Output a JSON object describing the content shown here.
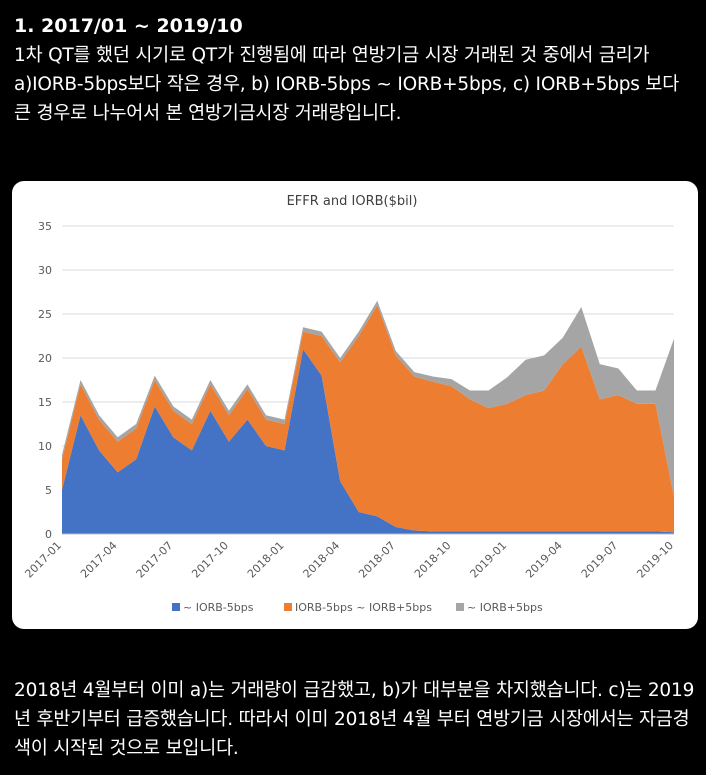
{
  "post": {
    "heading": "1. 2017/01 ~ 2019/10",
    "intro": "1차 QT를 했던 시기로 QT가 진행됨에 따라 연방기금 시장 거래된 것 중에서 금리가 a)IORB-5bps보다 작은 경우, b) IORB-5bps ~ IORB+5bps, c) IORB+5bps 보다 큰 경우로 나누어서 본 연방기금시장 거래량입니다.",
    "outro": "2018년 4월부터 이미 a)는 거래량이 급감했고, b)가 대부분을 차지했습니다.  c)는 2019년 후반기부터 급증했습니다. 따라서 이미 2018년 4월 부터 연방기금 시장에서는 자금경색이 시작된 것으로 보입니다."
  },
  "chart_data": {
    "type": "area",
    "stacked": true,
    "title": "EFFR and IORB($bil)",
    "xlabel": "",
    "ylabel": "",
    "ylim": [
      0,
      35
    ],
    "yticks": [
      "0",
      "5",
      "10",
      "15",
      "20",
      "25",
      "30",
      "35"
    ],
    "x": [
      "2017-01",
      "2017-02",
      "2017-03",
      "2017-04",
      "2017-05",
      "2017-06",
      "2017-07",
      "2017-08",
      "2017-09",
      "2017-10",
      "2017-11",
      "2017-12",
      "2018-01",
      "2018-02",
      "2018-03",
      "2018-04",
      "2018-05",
      "2018-06",
      "2018-07",
      "2018-08",
      "2018-09",
      "2018-10",
      "2018-11",
      "2018-12",
      "2019-01",
      "2019-02",
      "2019-03",
      "2019-04",
      "2019-05",
      "2019-06",
      "2019-07",
      "2019-08",
      "2019-09",
      "2019-10"
    ],
    "xtick_labels": [
      "2017-01",
      "2017-04",
      "2017-07",
      "2017-10",
      "2018-01",
      "2018-04",
      "2018-07",
      "2018-10",
      "2019-01",
      "2019-04",
      "2019-07",
      "2019-10"
    ],
    "grid": true,
    "legend_position": "bottom",
    "series": [
      {
        "name": "~ IORB-5bps",
        "color": "#4472C4",
        "values": [
          5.0,
          13.5,
          9.5,
          7.0,
          8.5,
          14.5,
          11.0,
          9.5,
          14.0,
          10.5,
          13.0,
          10.0,
          9.5,
          21.0,
          18.0,
          6.0,
          2.5,
          2.0,
          0.8,
          0.4,
          0.3,
          0.3,
          0.3,
          0.3,
          0.3,
          0.3,
          0.3,
          0.3,
          0.3,
          0.3,
          0.3,
          0.3,
          0.3,
          0.2
        ]
      },
      {
        "name": "IORB-5bps ~ IORB+5bps",
        "color": "#ED7D31",
        "values": [
          3.5,
          3.5,
          3.5,
          3.5,
          3.5,
          3.0,
          3.0,
          3.0,
          3.0,
          3.0,
          3.5,
          3.0,
          3.0,
          2.0,
          4.5,
          13.5,
          20.0,
          24.0,
          19.5,
          17.5,
          17.0,
          16.5,
          15.0,
          14.0,
          14.5,
          15.5,
          16.0,
          19.0,
          21.0,
          15.0,
          15.5,
          14.5,
          14.5,
          4.0
        ]
      },
      {
        "name": "~ IORB+5bps",
        "color": "#A5A5A5",
        "values": [
          0.5,
          0.5,
          0.5,
          0.5,
          0.5,
          0.5,
          0.5,
          0.5,
          0.5,
          0.5,
          0.5,
          0.5,
          0.5,
          0.5,
          0.5,
          0.5,
          0.5,
          0.5,
          0.5,
          0.5,
          0.6,
          0.8,
          1.0,
          2.0,
          3.0,
          4.0,
          4.0,
          3.0,
          4.5,
          4.0,
          3.0,
          1.5,
          1.5,
          18.0
        ]
      }
    ]
  }
}
